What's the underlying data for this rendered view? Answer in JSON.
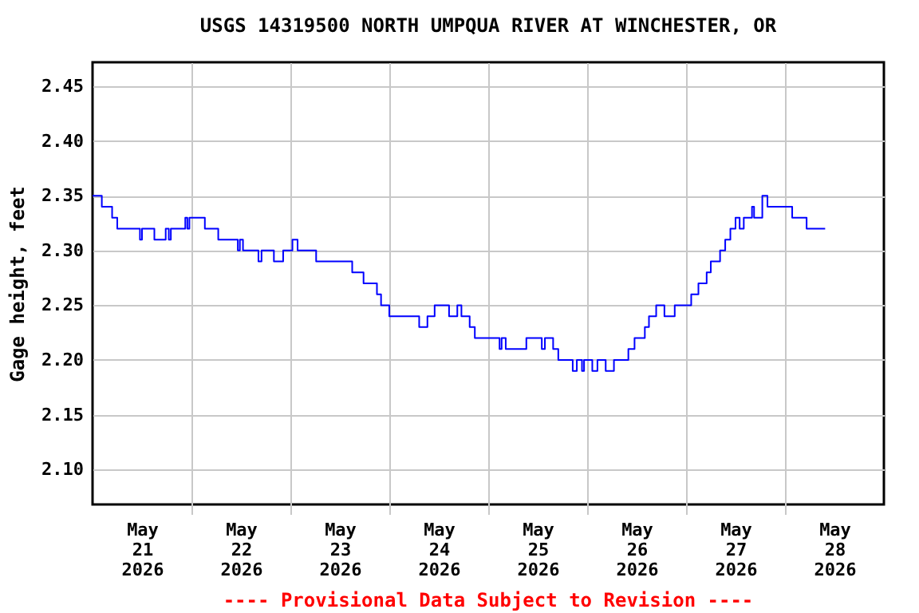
{
  "chart_data": {
    "type": "step",
    "title": "USGS 14319500 NORTH UMPQUA RIVER AT WINCHESTER, OR",
    "ylabel": "Gage height, feet",
    "annotations": [
      "---- Provisional Data Subject to Revision ----"
    ],
    "grid": true,
    "marker": "none",
    "line_style": "solid",
    "xlim": [
      "2026-05-21T00:00",
      "2026-05-29T00:00"
    ],
    "xticks": [
      {
        "value": "2026-05-21T12:00",
        "label": "May\n21\n2026"
      },
      {
        "value": "2026-05-22T12:00",
        "label": "May\n22\n2026"
      },
      {
        "value": "2026-05-23T12:00",
        "label": "May\n23\n2026"
      },
      {
        "value": "2026-05-24T12:00",
        "label": "May\n24\n2026"
      },
      {
        "value": "2026-05-25T12:00",
        "label": "May\n25\n2026"
      },
      {
        "value": "2026-05-26T12:00",
        "label": "May\n26\n2026"
      },
      {
        "value": "2026-05-27T12:00",
        "label": "May\n27\n2026"
      },
      {
        "value": "2026-05-28T12:00",
        "label": "May\n28\n2026"
      },
      {
        "value": "2026-05-22T00:00",
        "label": null
      },
      {
        "value": "2026-05-23T00:00",
        "label": null
      },
      {
        "value": "2026-05-24T00:00",
        "label": null
      },
      {
        "value": "2026-05-25T00:00",
        "label": null
      },
      {
        "value": "2026-05-26T00:00",
        "label": null
      },
      {
        "value": "2026-05-27T00:00",
        "label": null
      },
      {
        "value": "2026-05-28T00:00",
        "label": null
      }
    ],
    "ylim": [
      2.068,
      2.472
    ],
    "yticks": [
      {
        "value": 2.1,
        "label": "2.10"
      },
      {
        "value": 2.15,
        "label": "2.15"
      },
      {
        "value": 2.2,
        "label": "2.20"
      },
      {
        "value": 2.25,
        "label": "2.25"
      },
      {
        "value": 2.3,
        "label": "2.30"
      },
      {
        "value": 2.35,
        "label": "2.35"
      },
      {
        "value": 2.4,
        "label": "2.40"
      },
      {
        "value": 2.45,
        "label": "2.45"
      }
    ],
    "series": [
      {
        "color": "#0000ff",
        "x": [
          "2026-05-21T00:00",
          "2026-05-21T02:15",
          "2026-05-21T04:45",
          "2026-05-21T06:00",
          "2026-05-21T11:30",
          "2026-05-21T12:00",
          "2026-05-21T15:00",
          "2026-05-21T17:45",
          "2026-05-21T18:30",
          "2026-05-21T19:00",
          "2026-05-21T22:30",
          "2026-05-21T23:00",
          "2026-05-21T23:30",
          "2026-05-22T03:15",
          "2026-05-22T06:30",
          "2026-05-22T11:15",
          "2026-05-22T11:45",
          "2026-05-22T12:30",
          "2026-05-22T16:15",
          "2026-05-22T17:00",
          "2026-05-22T20:00",
          "2026-05-22T22:15",
          "2026-05-23T00:30",
          "2026-05-23T01:45",
          "2026-05-23T06:15",
          "2026-05-23T15:00",
          "2026-05-23T17:45",
          "2026-05-23T21:00",
          "2026-05-23T22:00",
          "2026-05-24T00:00",
          "2026-05-24T07:15",
          "2026-05-24T09:15",
          "2026-05-24T11:00",
          "2026-05-24T14:30",
          "2026-05-24T16:30",
          "2026-05-24T17:30",
          "2026-05-24T19:30",
          "2026-05-24T20:45",
          "2026-05-25T02:45",
          "2026-05-25T03:15",
          "2026-05-25T04:15",
          "2026-05-25T09:15",
          "2026-05-25T13:00",
          "2026-05-25T13:45",
          "2026-05-25T15:45",
          "2026-05-25T17:00",
          "2026-05-25T20:30",
          "2026-05-25T21:30",
          "2026-05-25T22:45",
          "2026-05-25T23:15",
          "2026-05-26T01:15",
          "2026-05-26T02:30",
          "2026-05-26T04:30",
          "2026-05-26T06:30",
          "2026-05-26T10:00",
          "2026-05-26T11:30",
          "2026-05-26T14:00",
          "2026-05-26T15:00",
          "2026-05-26T16:45",
          "2026-05-26T18:45",
          "2026-05-26T21:15",
          "2026-05-27T01:15",
          "2026-05-27T03:00",
          "2026-05-27T05:00",
          "2026-05-27T06:00",
          "2026-05-27T08:15",
          "2026-05-27T09:30",
          "2026-05-27T10:45",
          "2026-05-27T12:00",
          "2026-05-27T13:00",
          "2026-05-27T14:00",
          "2026-05-27T16:00",
          "2026-05-27T16:30",
          "2026-05-27T18:30",
          "2026-05-27T19:45",
          "2026-05-28T01:45",
          "2026-05-28T05:15",
          "2026-05-28T09:45"
        ],
        "values": [
          2.35,
          2.34,
          2.33,
          2.32,
          2.31,
          2.32,
          2.31,
          2.32,
          2.31,
          2.32,
          2.33,
          2.32,
          2.33,
          2.32,
          2.31,
          2.3,
          2.31,
          2.3,
          2.29,
          2.3,
          2.29,
          2.3,
          2.31,
          2.3,
          2.29,
          2.28,
          2.27,
          2.26,
          2.25,
          2.24,
          2.23,
          2.24,
          2.25,
          2.24,
          2.25,
          2.24,
          2.23,
          2.22,
          2.21,
          2.22,
          2.21,
          2.22,
          2.21,
          2.22,
          2.21,
          2.2,
          2.19,
          2.2,
          2.19,
          2.2,
          2.19,
          2.2,
          2.19,
          2.2,
          2.21,
          2.22,
          2.23,
          2.24,
          2.25,
          2.24,
          2.25,
          2.26,
          2.27,
          2.28,
          2.29,
          2.3,
          2.31,
          2.32,
          2.33,
          2.32,
          2.33,
          2.34,
          2.33,
          2.35,
          2.34,
          2.33,
          2.32,
          2.32
        ]
      }
    ]
  }
}
